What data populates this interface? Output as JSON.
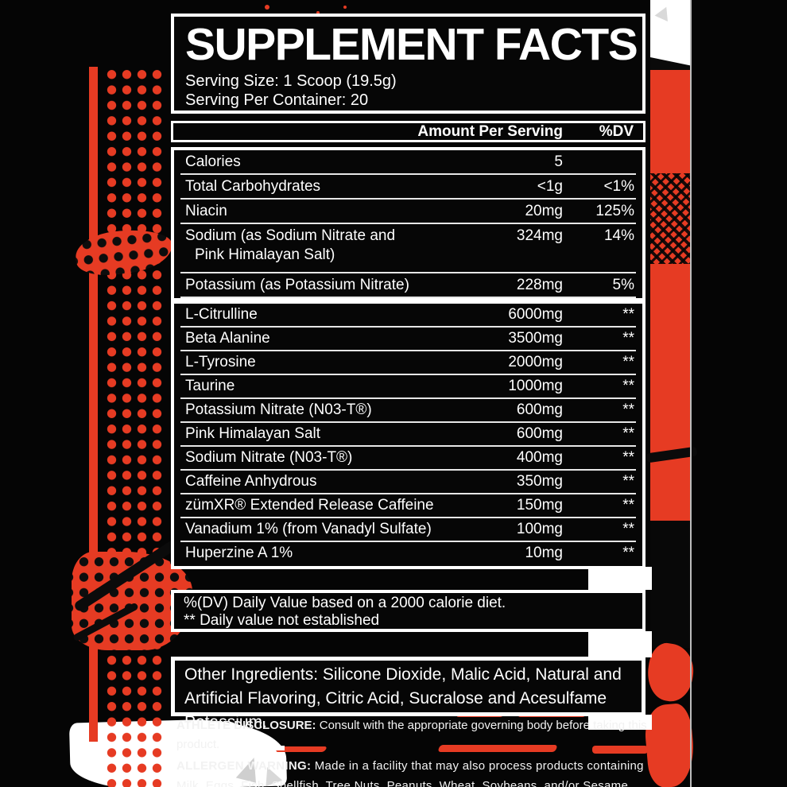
{
  "colors": {
    "red": "#e63b23",
    "white": "#ffffff",
    "black": "#060606"
  },
  "label": {
    "title": "SUPPLEMENT FACTS",
    "serving_size": "Serving Size: 1 Scoop (19.5g)",
    "servings_per_container": "Serving Per Container: 20",
    "columns": {
      "amount": "Amount Per Serving",
      "dv": "%DV"
    },
    "nutrients": [
      {
        "name": "Calories",
        "amount": "5",
        "dv": ""
      },
      {
        "name": "Total Carbohydrates",
        "amount": "<1g",
        "dv": "<1%"
      },
      {
        "name": "Niacin",
        "amount": "20mg",
        "dv": "125%"
      },
      {
        "name": "Sodium (as Sodium Nitrate and",
        "name2": "Pink Himalayan Salt)",
        "amount": "324mg",
        "dv": "14%"
      },
      {
        "name": "Potassium (as Potassium Nitrate)",
        "amount": "228mg",
        "dv": "5%"
      }
    ],
    "actives": [
      {
        "name": "L-Citrulline",
        "amount": "6000mg",
        "dv": "**"
      },
      {
        "name": "Beta Alanine",
        "amount": "3500mg",
        "dv": "**"
      },
      {
        "name": "L-Tyrosine",
        "amount": "2000mg",
        "dv": "**"
      },
      {
        "name": "Taurine",
        "amount": "1000mg",
        "dv": "**"
      },
      {
        "name": "Potassium Nitrate (N03-T®)",
        "amount": "600mg",
        "dv": "**"
      },
      {
        "name": "Pink Himalayan Salt",
        "amount": "600mg",
        "dv": "**"
      },
      {
        "name": "Sodium Nitrate (N03-T®)",
        "amount": "400mg",
        "dv": "**"
      },
      {
        "name": "Caffeine Anhydrous",
        "amount": "350mg",
        "dv": "**"
      },
      {
        "name": "zümXR® Extended Release Caffeine",
        "amount": "150mg",
        "dv": "**"
      },
      {
        "name": "Vanadium 1% (from Vanadyl Sulfate)",
        "amount": "100mg",
        "dv": "**"
      },
      {
        "name": "Huperzine A 1%",
        "amount": "10mg",
        "dv": "**"
      }
    ],
    "footnotes": [
      "%(DV) Daily Value based on a 2000 calorie diet.",
      "** Daily value not established"
    ],
    "other_ingredients": "Other Ingredients: Silicone Dioxide, Malic Acid, Natural and Artificial Flavoring, Citric Acid, Sucralose and Acesulfame Potassium.",
    "athlete_disclosure": {
      "label": "ATHLETE DISCLOSURE:",
      "text": "Consult with the appropriate governing body before taking this product."
    },
    "allergen_warning": {
      "label": "ALLERGEN WARNING:",
      "text": "Made in a facility that may also process products containing Milk, Eggs, Fish, Shellfish, Tree Nuts, Peanuts, Wheat, Soybeans, and/or Sesame."
    }
  }
}
